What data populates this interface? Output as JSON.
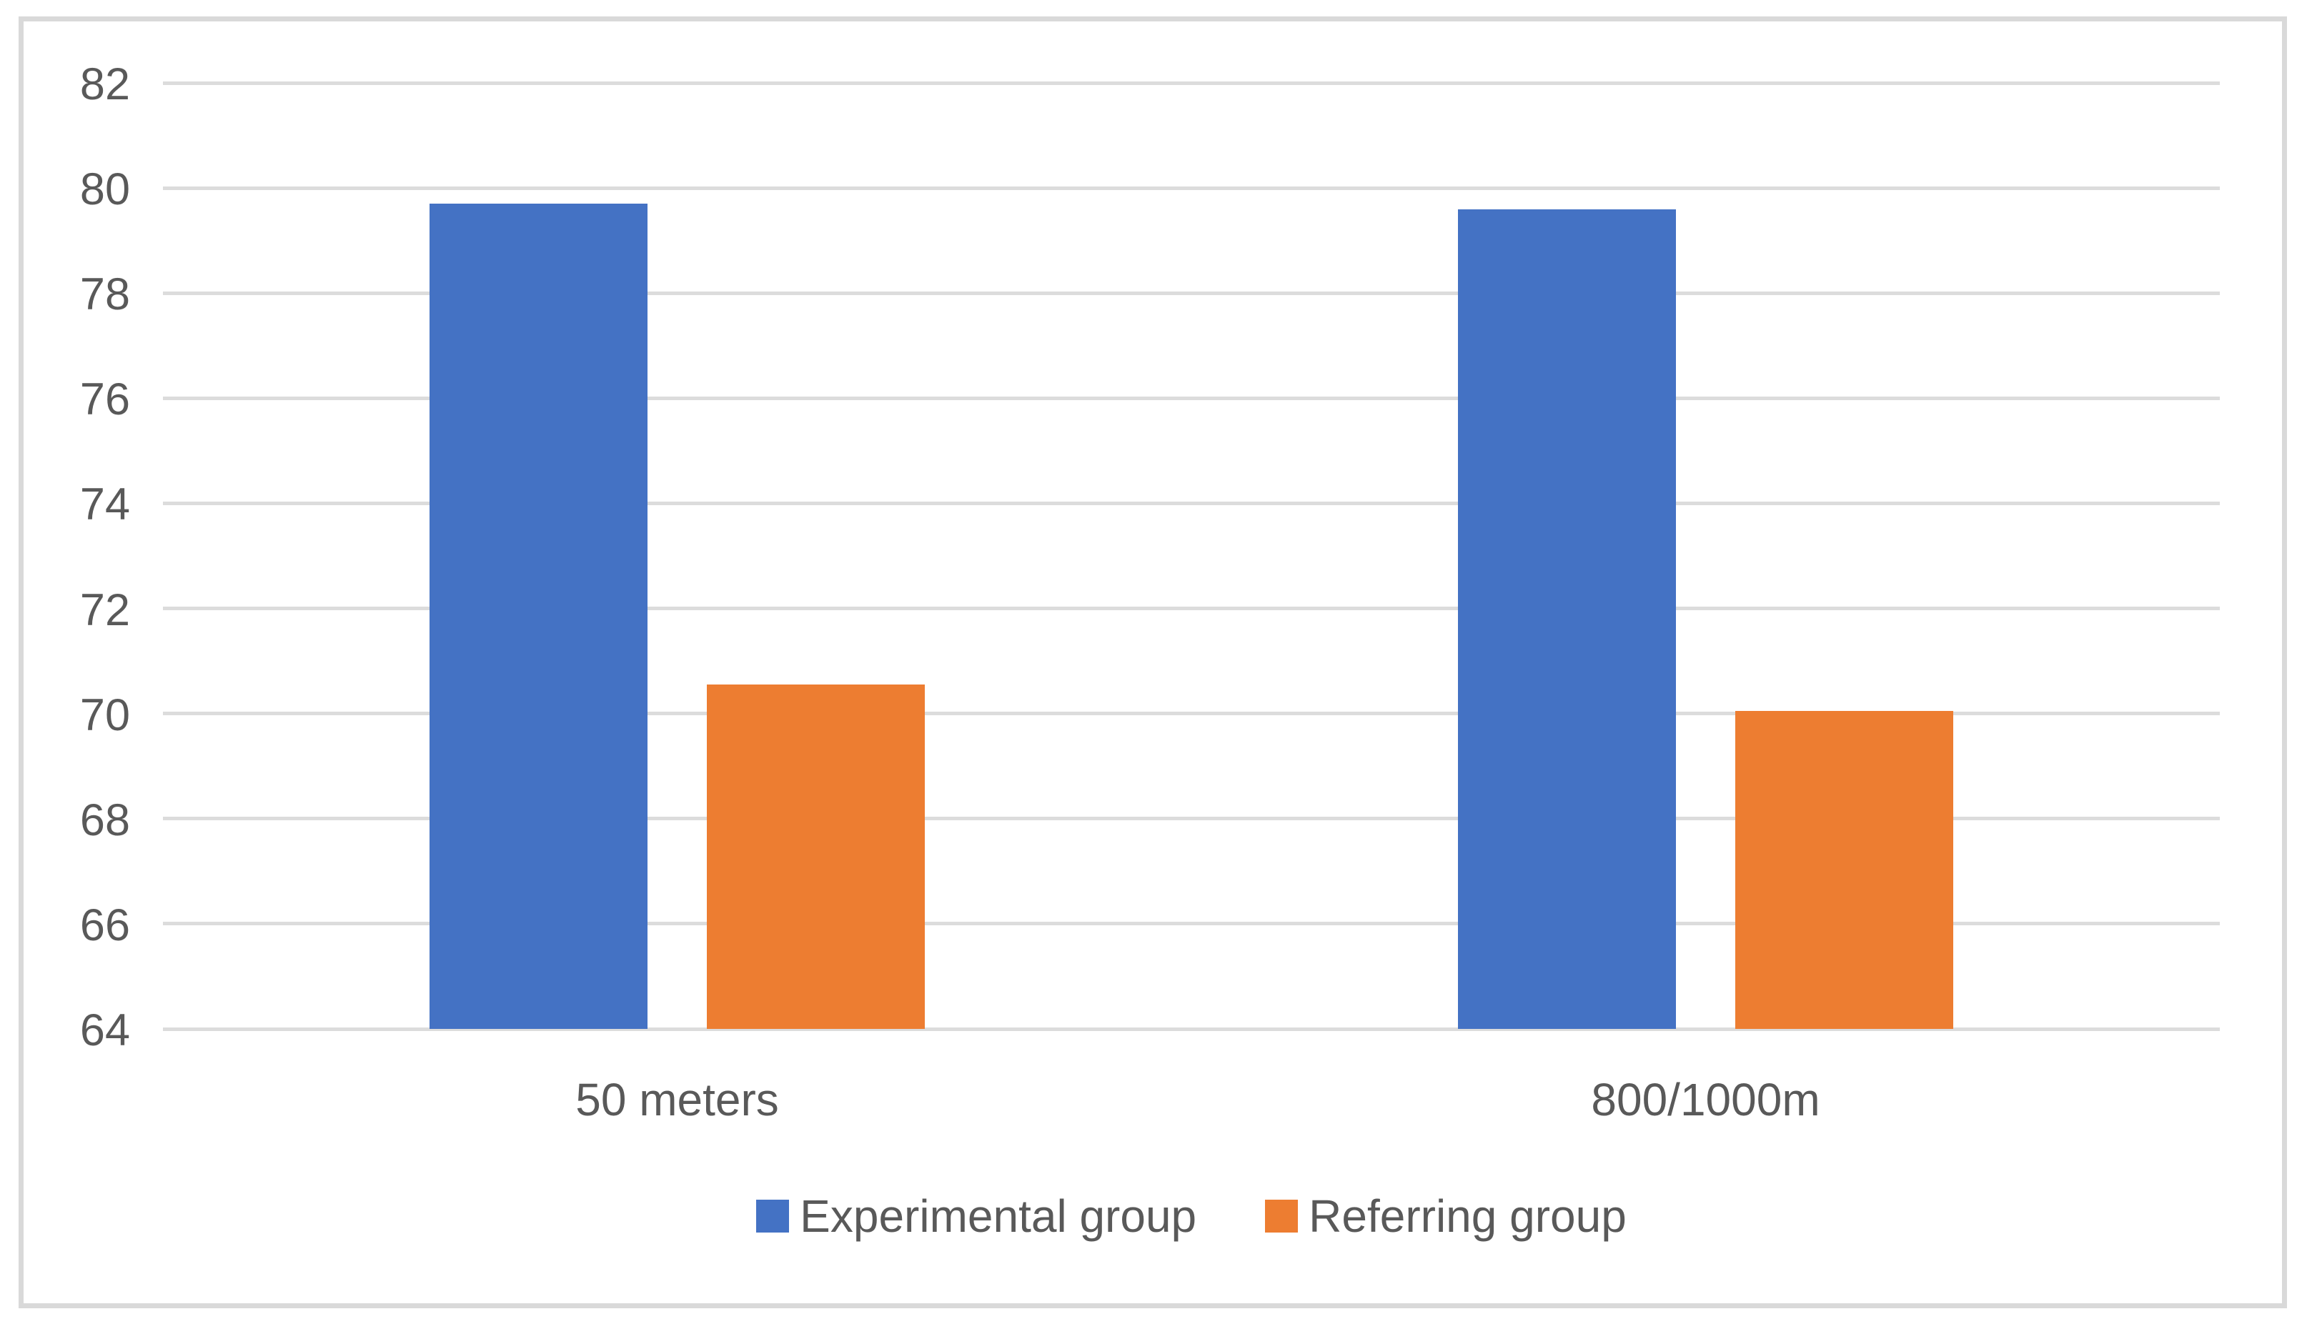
{
  "chart_data": {
    "type": "bar",
    "title": "",
    "xlabel": "",
    "ylabel": "",
    "categories": [
      "50 meters",
      "800/1000m"
    ],
    "series": [
      {
        "name": "Experimental group",
        "color": "#4472C4",
        "values": [
          79.7,
          79.6
        ]
      },
      {
        "name": "Referring group",
        "color": "#ED7D31",
        "values": [
          70.55,
          70.05
        ]
      }
    ],
    "ylim": [
      64,
      82
    ],
    "ytick_step": 2,
    "yticks": [
      82,
      80,
      78,
      76,
      74,
      72,
      70,
      68,
      66,
      64
    ],
    "grid": true,
    "legend_position": "bottom"
  },
  "colors": {
    "text": "#595959",
    "gridline": "#DCDCDC",
    "frame_border": "#D9D9D9",
    "background": "#FFFFFF"
  }
}
